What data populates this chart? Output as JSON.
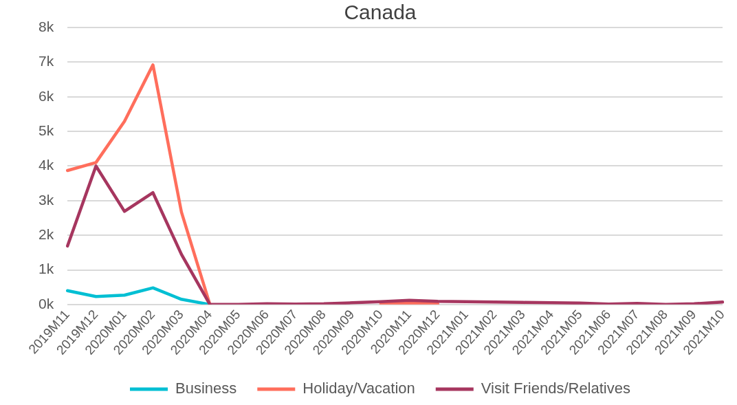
{
  "chart_data": {
    "type": "line",
    "title": "Canada",
    "categories": [
      "2019M11",
      "2019M12",
      "2020M01",
      "2020M02",
      "2020M03",
      "2020M04",
      "2020M05",
      "2020M06",
      "2020M07",
      "2020M08",
      "2020M09",
      "2020M10",
      "2020M11",
      "2020M12",
      "2021M01",
      "2021M02",
      "2021M03",
      "2021M04",
      "2021M05",
      "2021M06",
      "2021M07",
      "2021M08",
      "2021M09",
      "2021M10"
    ],
    "series": [
      {
        "name": "Business",
        "color": "#00bfd3",
        "values": [
          400,
          230,
          270,
          480,
          150,
          0,
          null,
          null,
          null,
          null,
          null,
          null,
          null,
          null,
          null,
          null,
          null,
          null,
          null,
          null,
          null,
          null,
          null,
          null
        ]
      },
      {
        "name": "Holiday/Vacation",
        "color": "#ff6e5c",
        "values": [
          3870,
          4100,
          5290,
          6920,
          2670,
          0,
          null,
          null,
          null,
          null,
          null,
          20,
          40,
          20,
          null,
          null,
          null,
          null,
          null,
          null,
          null,
          null,
          null,
          null
        ]
      },
      {
        "name": "Visit Friends/Relatives",
        "color": "#a6365f",
        "values": [
          1690,
          4000,
          2690,
          3230,
          1450,
          0,
          0,
          20,
          10,
          20,
          50,
          80,
          120,
          90,
          80,
          70,
          60,
          50,
          40,
          10,
          30,
          0,
          20,
          70
        ]
      }
    ],
    "ylim": [
      0,
      8000
    ],
    "yticks": [
      {
        "value": 0,
        "label": "0k"
      },
      {
        "value": 1000,
        "label": "1k"
      },
      {
        "value": 2000,
        "label": "2k"
      },
      {
        "value": 3000,
        "label": "3k"
      },
      {
        "value": 4000,
        "label": "4k"
      },
      {
        "value": 5000,
        "label": "5k"
      },
      {
        "value": 6000,
        "label": "6k"
      },
      {
        "value": 7000,
        "label": "7k"
      },
      {
        "value": 8000,
        "label": "8k"
      }
    ],
    "grid": "y",
    "legend": "bottom",
    "marker": "none",
    "line_style": "solid"
  }
}
